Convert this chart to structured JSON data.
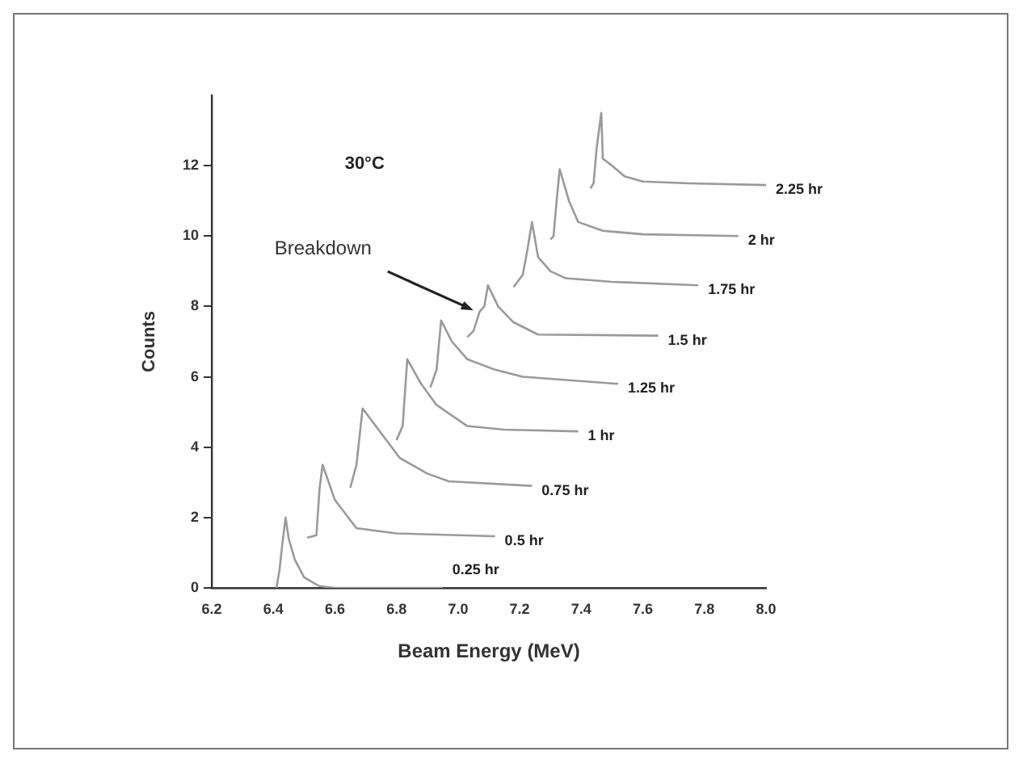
{
  "chart_data": {
    "type": "line",
    "title": "30°C",
    "xlabel": "Beam Energy (MeV)",
    "ylabel": "Counts",
    "xlim": [
      6.2,
      8.0
    ],
    "xticks": [
      {
        "value": 6.2,
        "label": "6.2"
      },
      {
        "value": 6.4,
        "label": "6.4"
      },
      {
        "value": 6.6,
        "label": "6.6"
      },
      {
        "value": 6.8,
        "label": "6.8"
      },
      {
        "value": 7.0,
        "label": "7.0"
      },
      {
        "value": 7.2,
        "label": "7.2"
      },
      {
        "value": 7.4,
        "label": "7.4"
      },
      {
        "value": 7.6,
        "label": "7.6"
      },
      {
        "value": 7.8,
        "label": "7.8"
      },
      {
        "value": 8.0,
        "label": "8.0"
      }
    ],
    "ylim": [
      0,
      14
    ],
    "yticks": [
      0,
      2,
      4,
      6,
      8,
      10,
      12
    ],
    "grid": false,
    "legend": false,
    "marker": "none",
    "line_style": "solid",
    "annotations": [
      {
        "text": "Breakdown",
        "x": 7.06,
        "y": 7.8
      }
    ],
    "series": [
      {
        "name": "0.25 hr",
        "color": "#9a9a9a",
        "x": [
          6.41,
          6.42,
          6.43,
          6.44,
          6.45,
          6.47,
          6.5,
          6.55,
          6.6,
          6.95
        ],
        "values": [
          0,
          0.5,
          1.3,
          2.0,
          1.4,
          0.8,
          0.3,
          0.05,
          0,
          0
        ]
      },
      {
        "name": "0.5 hr",
        "color": "#9a9a9a",
        "x": [
          6.51,
          6.54,
          6.55,
          6.56,
          6.6,
          6.67,
          6.8,
          7.12
        ],
        "values": [
          1.43,
          1.5,
          2.8,
          3.5,
          2.5,
          1.7,
          1.55,
          1.47
        ]
      },
      {
        "name": "0.75 hr",
        "color": "#9a9a9a",
        "x": [
          6.65,
          6.67,
          6.69,
          6.75,
          6.81,
          6.9,
          6.97,
          7.24
        ],
        "values": [
          2.85,
          3.5,
          5.1,
          4.4,
          3.7,
          3.25,
          3.03,
          2.9
        ]
      },
      {
        "name": "1 hr",
        "color": "#9a9a9a",
        "x": [
          6.8,
          6.82,
          6.835,
          6.88,
          6.93,
          7.03,
          7.15,
          7.39
        ],
        "values": [
          4.2,
          4.6,
          6.5,
          5.8,
          5.2,
          4.6,
          4.5,
          4.45
        ]
      },
      {
        "name": "1.25 hr",
        "color": "#9a9a9a",
        "x": [
          6.91,
          6.93,
          6.945,
          6.98,
          7.03,
          7.12,
          7.21,
          7.52
        ],
        "values": [
          5.7,
          6.2,
          7.6,
          7.0,
          6.5,
          6.2,
          6.0,
          5.8
        ]
      },
      {
        "name": "1.5 hr",
        "color": "#9a9a9a",
        "x": [
          7.03,
          7.05,
          7.07,
          7.085,
          7.097,
          7.13,
          7.18,
          7.26,
          7.65
        ],
        "values": [
          7.13,
          7.3,
          7.85,
          8.0,
          8.6,
          8.0,
          7.55,
          7.2,
          7.17
        ]
      },
      {
        "name": "1.75 hr",
        "color": "#9a9a9a",
        "x": [
          7.18,
          7.21,
          7.225,
          7.24,
          7.26,
          7.3,
          7.35,
          7.5,
          7.78
        ],
        "values": [
          8.55,
          8.9,
          9.6,
          10.4,
          9.4,
          9.0,
          8.8,
          8.7,
          8.6
        ]
      },
      {
        "name": "2 hr",
        "color": "#9a9a9a",
        "x": [
          7.3,
          7.31,
          7.32,
          7.33,
          7.36,
          7.39,
          7.47,
          7.6,
          7.91
        ],
        "values": [
          9.9,
          10.0,
          11.0,
          11.9,
          11.0,
          10.4,
          10.15,
          10.05,
          10.0
        ]
      },
      {
        "name": "2.25 hr",
        "color": "#9a9a9a",
        "x": [
          7.43,
          7.44,
          7.45,
          7.465,
          7.47,
          7.5,
          7.54,
          7.6,
          7.75,
          8.0
        ],
        "values": [
          11.35,
          11.5,
          12.5,
          13.5,
          12.2,
          12.0,
          11.7,
          11.55,
          11.5,
          11.45
        ]
      }
    ]
  }
}
